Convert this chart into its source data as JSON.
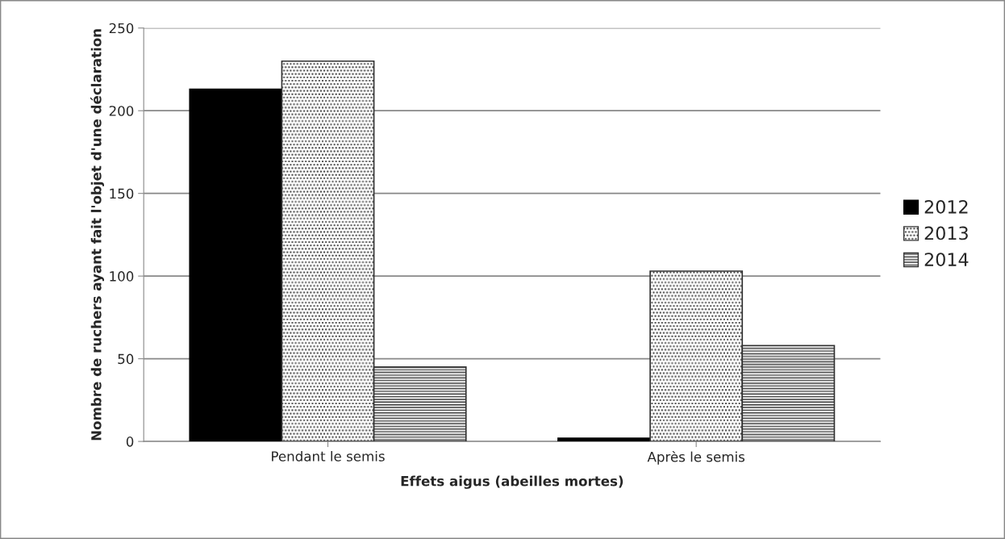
{
  "chart_data": {
    "type": "bar",
    "xlabel": "Effets aigus (abeilles mortes)",
    "ylabel": "Nombre de ruchers ayant fait l'objet d'une déclaration",
    "categories": [
      "Pendant le semis",
      "Après le semis"
    ],
    "series": [
      {
        "name": "2012",
        "color": "#000000",
        "values": [
          213,
          2
        ]
      },
      {
        "name": "2013",
        "color": "#333333",
        "values": [
          230,
          103
        ]
      },
      {
        "name": "2014",
        "color": "#333333",
        "values": [
          45,
          58
        ]
      }
    ],
    "ylim": [
      0,
      250
    ],
    "yticks": [
      0,
      50,
      100,
      150,
      200,
      250
    ],
    "grid": "y",
    "legend": "right"
  }
}
